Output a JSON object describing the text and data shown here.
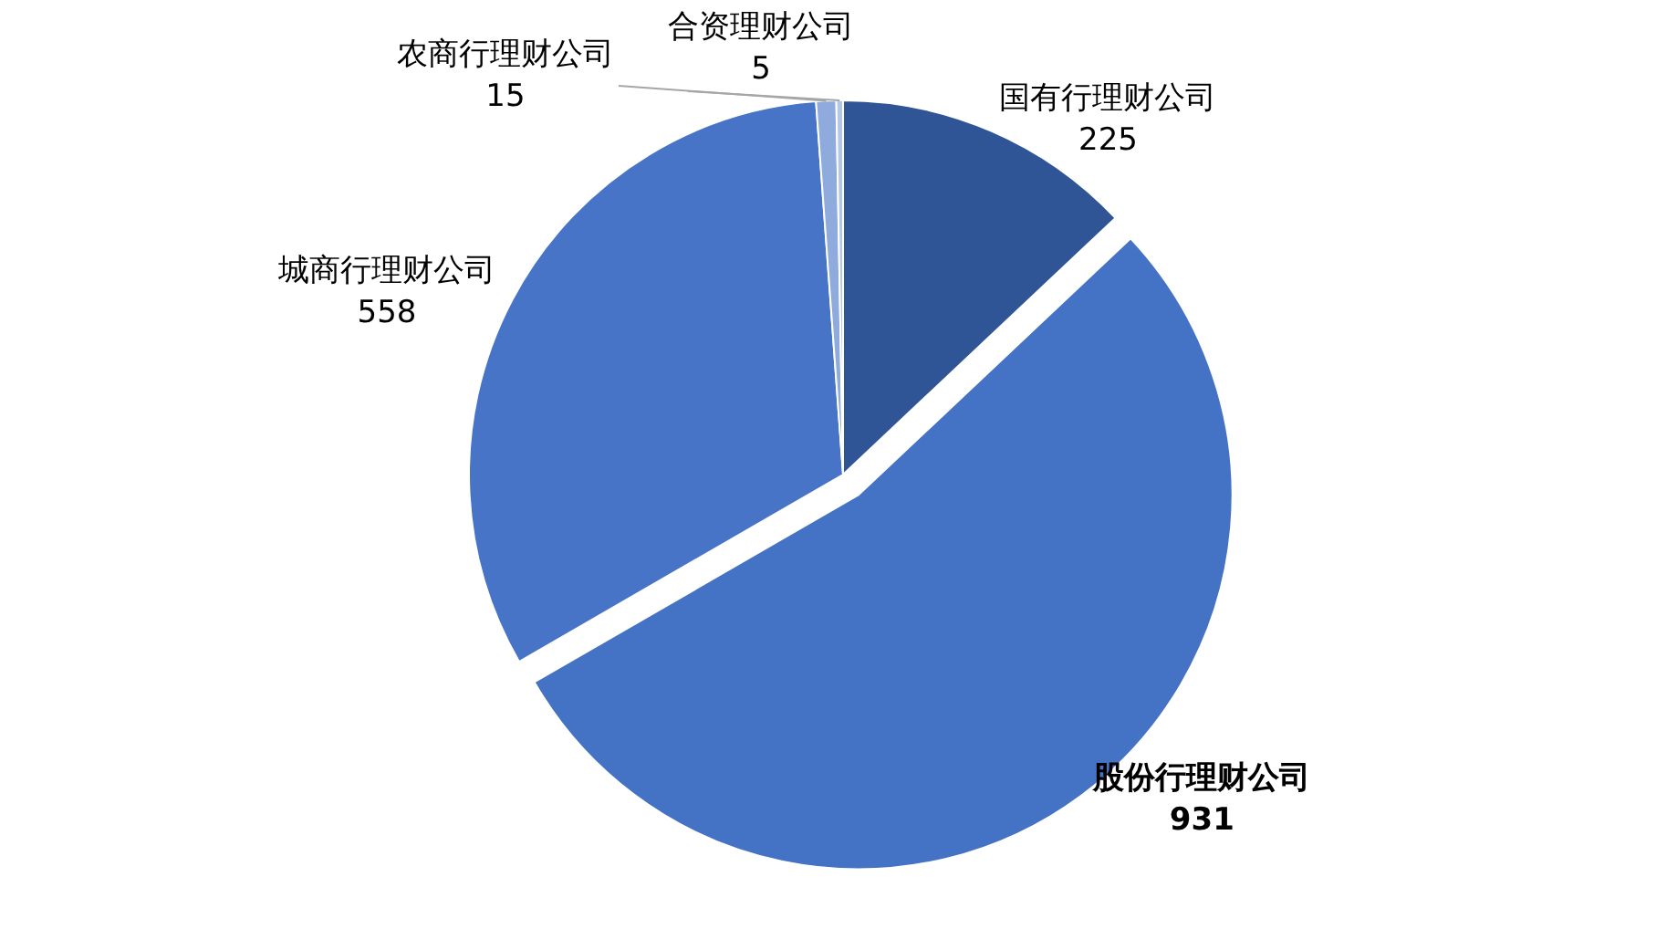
{
  "chart_data": {
    "type": "pie",
    "categories": [
      "国有行理财公司",
      "股份行理财公司",
      "城商行理财公司",
      "农商行理财公司",
      "合资理财公司"
    ],
    "values": [
      225,
      931,
      558,
      15,
      5
    ],
    "colors": [
      "#2f5597",
      "#4472c4",
      "#4874c8",
      "#8faadc",
      "#b4c7e7"
    ],
    "data_labels": true
  }
}
